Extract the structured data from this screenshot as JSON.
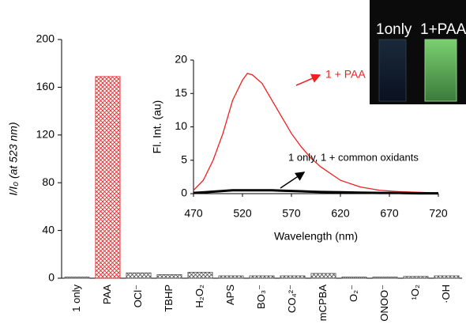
{
  "chart_data": [
    {
      "type": "bar",
      "ylabel": "I/I₀ (at 523 nm)",
      "categories": [
        "1 only",
        "PAA",
        "OCl⁻",
        "TBHP",
        "H₂O₂",
        "APS",
        "BO₃⁻",
        "CO₄²⁻",
        "mCPBA",
        "O₂⁻",
        "ONOO⁻",
        "¹O₂",
        "·OH"
      ],
      "values": [
        1,
        169,
        4.5,
        3,
        5,
        2,
        2,
        2,
        4,
        1,
        1,
        1.5,
        2
      ],
      "colors": [
        "#555555",
        "#e03030",
        "#555555",
        "#555555",
        "#555555",
        "#555555",
        "#555555",
        "#555555",
        "#555555",
        "#555555",
        "#555555",
        "#555555",
        "#555555"
      ],
      "ylim": [
        0,
        200
      ],
      "yticks": [
        0,
        40,
        80,
        120,
        160,
        200
      ]
    },
    {
      "type": "line",
      "xlabel": "Wavelength (nm)",
      "ylabel": "Fl. Int. (au)",
      "x": [
        470,
        480,
        490,
        500,
        510,
        520,
        525,
        530,
        540,
        550,
        560,
        570,
        580,
        590,
        600,
        620,
        640,
        660,
        680,
        700,
        720
      ],
      "series": [
        {
          "name": "1 + PAA",
          "color": "#ee2020",
          "values": [
            0.5,
            2,
            5,
            9,
            14,
            17,
            18,
            17.8,
            16.5,
            14,
            11.5,
            9,
            7,
            5.3,
            4,
            2,
            1,
            0.5,
            0.3,
            0.2,
            0.1
          ]
        },
        {
          "name": "1 only, 1 + common oxidants",
          "color": "#000000",
          "values": [
            0.1,
            0.2,
            0.3,
            0.4,
            0.5,
            0.5,
            0.5,
            0.5,
            0.5,
            0.5,
            0.45,
            0.4,
            0.35,
            0.3,
            0.25,
            0.2,
            0.15,
            0.1,
            0.1,
            0.05,
            0.05
          ]
        }
      ],
      "xlim": [
        470,
        720
      ],
      "xticks": [
        470,
        520,
        570,
        620,
        670,
        720
      ],
      "ylim": [
        0,
        20
      ],
      "yticks": [
        0,
        5,
        10,
        15,
        20
      ]
    }
  ],
  "photo": {
    "labels": [
      "1only",
      "1+PAA"
    ]
  }
}
